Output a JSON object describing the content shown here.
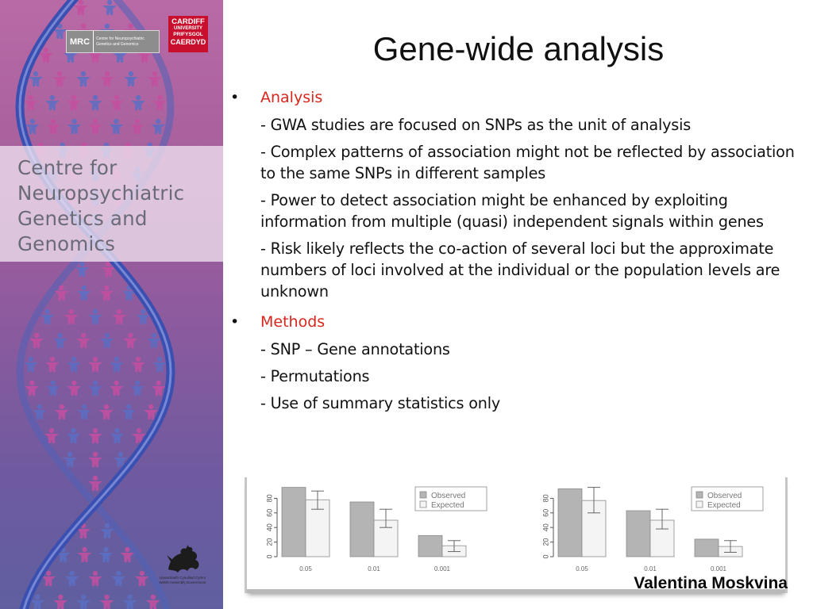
{
  "sidebar": {
    "brand_text_lines": [
      "Centre for",
      "Neuropsychiatric",
      "Genetics and",
      "Genomics"
    ],
    "mrc_logo": {
      "acronym": "MRC",
      "subtitle": "Centre for Neuropsychiatric Genetics and Genomics"
    },
    "cardiff_logo": {
      "lines": [
        "CARDIFF",
        "UNIVERSITY",
        "PRIFYSGOL",
        "CAERDYD"
      ]
    },
    "wag_logo": {
      "icon": "welsh-dragon-icon",
      "caption_lines": [
        "Llywodraeth Cynulliad Cymru",
        "Welsh Assembly Government"
      ]
    },
    "colors": {
      "panel_top": "#b86aa6",
      "panel_bottom": "#5f5f9f",
      "figure_pink": "#c54fa0",
      "figure_blue": "#5b6fc4",
      "helix_blue": "#3a4fb0"
    }
  },
  "slide": {
    "title": "Gene-wide analysis",
    "sections": [
      {
        "heading": "Analysis",
        "items": [
          "- GWA studies are focused on SNPs as the unit of analysis",
          "- Complex patterns of association might not be reflected by association to the same SNPs in different samples",
          "- Power to detect association might be enhanced by exploiting information from multiple (quasi) independent signals within genes",
          "- Risk likely reflects the co-action of several loci but the approximate numbers of loci involved at the individual or the population levels are unknown"
        ]
      },
      {
        "heading": "Methods",
        "items": [
          "- SNP – Gene annotations",
          "- Permutations",
          "- Use of summary statistics only"
        ]
      }
    ],
    "bullet_symbol": "•",
    "heading_color": "#d8261c",
    "author": "Valentina Moskvina"
  },
  "chart_data": [
    {
      "type": "bar",
      "categories": [
        "0.05",
        "0.01",
        "0.001"
      ],
      "series": [
        {
          "name": "Observed",
          "values": [
            95,
            75,
            29
          ],
          "color": "#b4b4b4"
        },
        {
          "name": "Expected",
          "values": [
            78,
            50,
            15
          ],
          "color": "#f4f4f4",
          "error": [
            [
              65,
              90
            ],
            [
              40,
              65
            ],
            [
              7,
              22
            ]
          ]
        }
      ],
      "yticks": [
        0,
        20,
        40,
        60,
        80
      ],
      "ylim": [
        0,
        100
      ],
      "legend": "top-right"
    },
    {
      "type": "bar",
      "categories": [
        "0.05",
        "0.01",
        "0.001"
      ],
      "series": [
        {
          "name": "Observed",
          "values": [
            93,
            63,
            24
          ],
          "color": "#b4b4b4"
        },
        {
          "name": "Expected",
          "values": [
            77,
            50,
            14
          ],
          "color": "#f4f4f4",
          "error": [
            [
              60,
              95
            ],
            [
              38,
              65
            ],
            [
              6,
              22
            ]
          ]
        }
      ],
      "yticks": [
        0,
        20,
        40,
        60,
        80
      ],
      "ylim": [
        0,
        100
      ],
      "legend": "top-right"
    }
  ]
}
